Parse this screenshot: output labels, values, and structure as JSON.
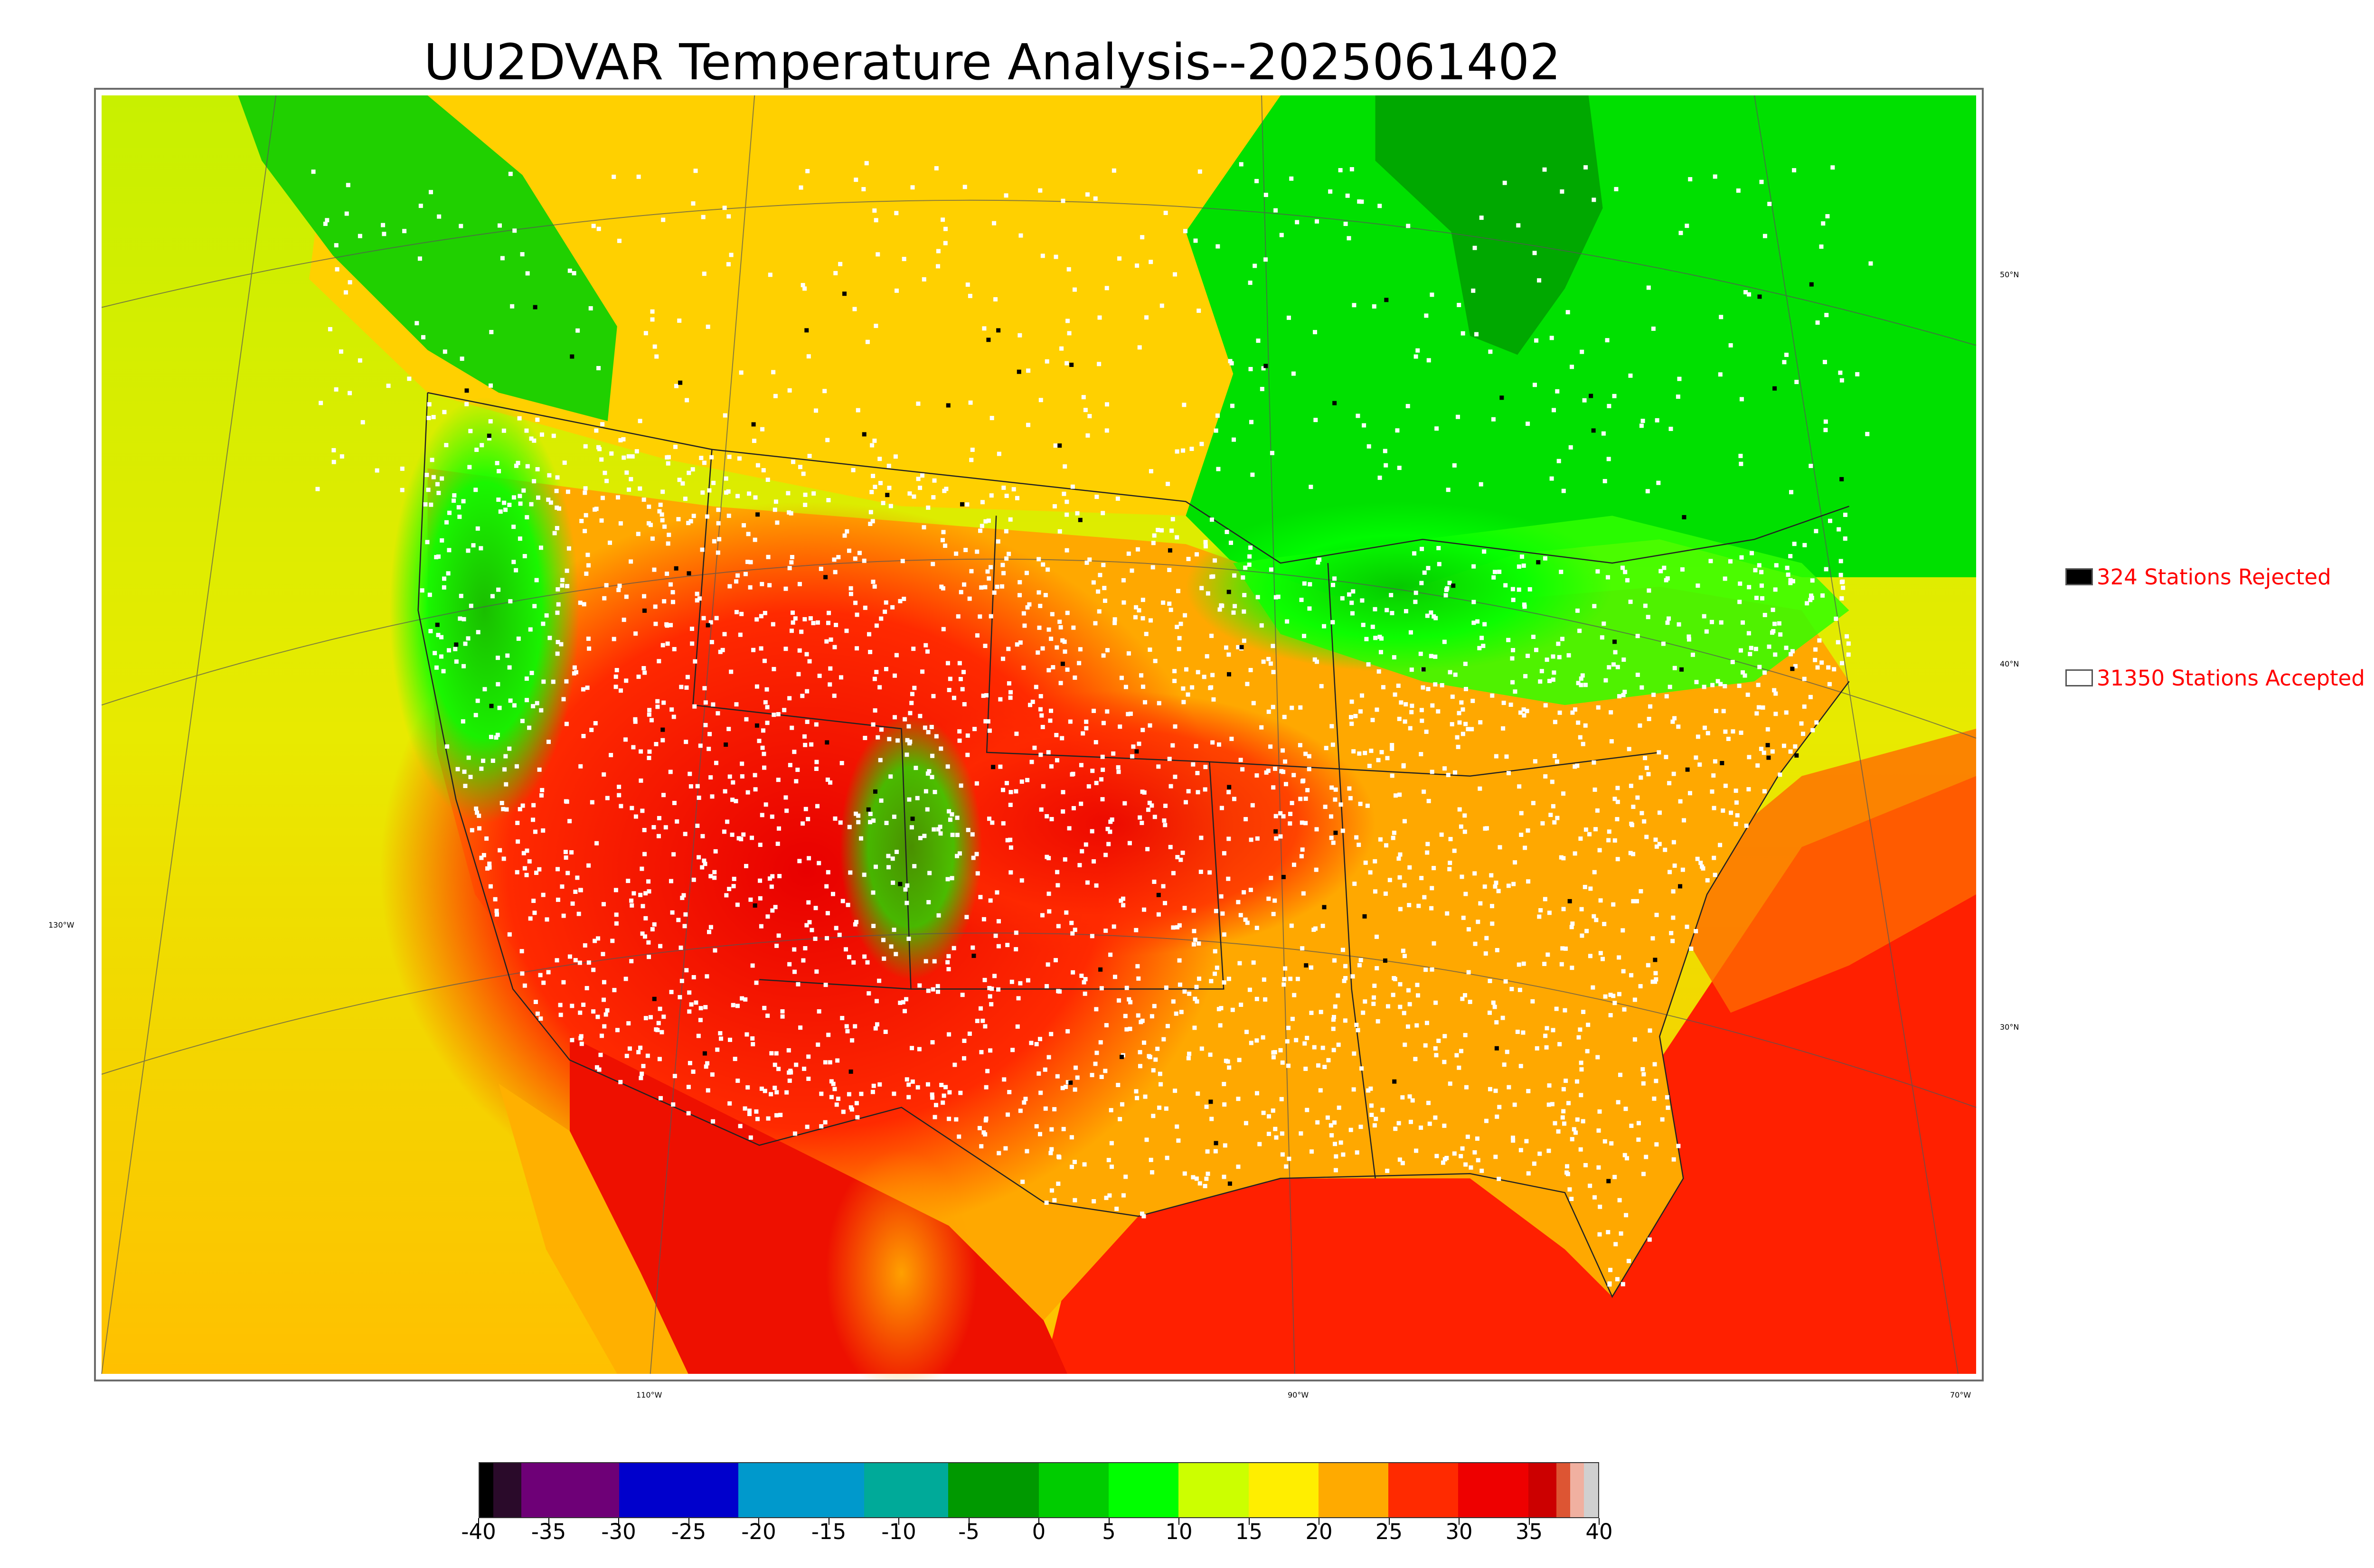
{
  "title": "UU2DVAR Temperature Analysis--2025061402",
  "map": {
    "lon_labels": [
      "130°W",
      "110°W",
      "90°W",
      "70°W"
    ],
    "lat_labels": [
      "50°N",
      "40°N",
      "30°N"
    ],
    "colors": {
      "cold_green": "#00d000",
      "green": "#00ff00",
      "yellow_green": "#c8ff00",
      "yellow": "#e8ee00",
      "orange": "#ffb000",
      "red": "#ff2000",
      "dark_red": "#e00000",
      "station_accepted": "#ffffff",
      "station_rejected": "#000000"
    }
  },
  "legend": {
    "rejected": {
      "label": "324 Stations Rejected",
      "count": 324,
      "swatch_color": "#000000"
    },
    "accepted": {
      "label": "31350 Stations Accepted",
      "count": 31350,
      "swatch_color": "#ffffff"
    }
  },
  "colorbar": {
    "range": [
      -40,
      40
    ],
    "tick_labels": [
      "-40",
      "-35",
      "-30",
      "-25",
      "-20",
      "-15",
      "-10",
      "-5",
      "0",
      "5",
      "10",
      "15",
      "20",
      "25",
      "30",
      "35",
      "40"
    ],
    "segments": [
      {
        "from": -40,
        "to": -39,
        "color": "#000000"
      },
      {
        "from": -39,
        "to": -37,
        "color": "#2a0a2a"
      },
      {
        "from": -37,
        "to": -30,
        "color": "#6e0077"
      },
      {
        "from": -30,
        "to": -21.5,
        "color": "#0000cc"
      },
      {
        "from": -21.5,
        "to": -12.5,
        "color": "#0099cc"
      },
      {
        "from": -12.5,
        "to": -6.5,
        "color": "#00aa99"
      },
      {
        "from": -6.5,
        "to": 0,
        "color": "#009900"
      },
      {
        "from": 0,
        "to": 5,
        "color": "#00cc00"
      },
      {
        "from": 5,
        "to": 10,
        "color": "#00ff00"
      },
      {
        "from": 10,
        "to": 15,
        "color": "#ccff00"
      },
      {
        "from": 15,
        "to": 20,
        "color": "#ffee00"
      },
      {
        "from": 20,
        "to": 25,
        "color": "#ffaa00"
      },
      {
        "from": 25,
        "to": 30,
        "color": "#ff2a00"
      },
      {
        "from": 30,
        "to": 35,
        "color": "#ee0000"
      },
      {
        "from": 35,
        "to": 37,
        "color": "#cc0000"
      },
      {
        "from": 37,
        "to": 38,
        "color": "#dd5533"
      },
      {
        "from": 38,
        "to": 39,
        "color": "#f0b0a0"
      },
      {
        "from": 39,
        "to": 40,
        "color": "#d0d0d0"
      }
    ]
  }
}
